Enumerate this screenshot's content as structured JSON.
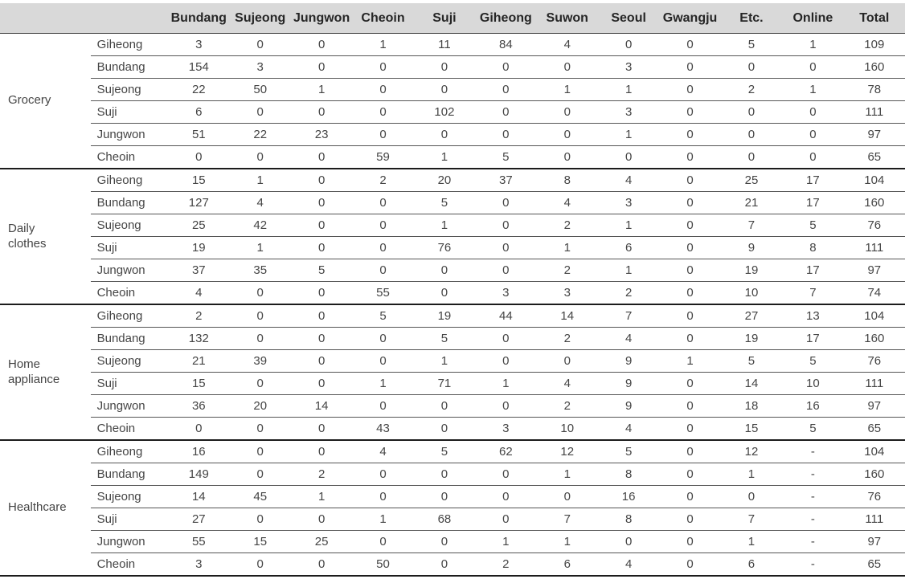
{
  "colors": {
    "header_background": "#d9d9d9",
    "header_text": "#262626",
    "body_text": "#454545",
    "row_rule": "#565656",
    "group_rule": "#1c1c1c"
  },
  "chart_data": {
    "type": "table",
    "title": "",
    "columns": [
      "Bundang",
      "Sujeong",
      "Jungwon",
      "Cheoin",
      "Suji",
      "Giheong",
      "Suwon",
      "Seoul",
      "Gwangju",
      "Etc.",
      "Online",
      "Total"
    ],
    "groups": [
      {
        "category": "Grocery",
        "rows": [
          {
            "label": "Giheong",
            "values": [
              3,
              0,
              0,
              1,
              11,
              84,
              4,
              0,
              0,
              5,
              1,
              109
            ]
          },
          {
            "label": "Bundang",
            "values": [
              154,
              3,
              0,
              0,
              0,
              0,
              0,
              3,
              0,
              0,
              0,
              160
            ]
          },
          {
            "label": "Sujeong",
            "values": [
              22,
              50,
              1,
              0,
              0,
              0,
              1,
              1,
              0,
              2,
              1,
              78
            ]
          },
          {
            "label": "Suji",
            "values": [
              6,
              0,
              0,
              0,
              102,
              0,
              0,
              3,
              0,
              0,
              0,
              111
            ]
          },
          {
            "label": "Jungwon",
            "values": [
              51,
              22,
              23,
              0,
              0,
              0,
              0,
              1,
              0,
              0,
              0,
              97
            ]
          },
          {
            "label": "Cheoin",
            "values": [
              0,
              0,
              0,
              59,
              1,
              5,
              0,
              0,
              0,
              0,
              0,
              65
            ]
          }
        ]
      },
      {
        "category": "Daily clothes",
        "rows": [
          {
            "label": "Giheong",
            "values": [
              15,
              1,
              0,
              2,
              20,
              37,
              8,
              4,
              0,
              25,
              17,
              104
            ]
          },
          {
            "label": "Bundang",
            "values": [
              127,
              4,
              0,
              0,
              5,
              0,
              4,
              3,
              0,
              21,
              17,
              160
            ]
          },
          {
            "label": "Sujeong",
            "values": [
              25,
              42,
              0,
              0,
              1,
              0,
              2,
              1,
              0,
              7,
              5,
              76
            ]
          },
          {
            "label": "Suji",
            "values": [
              19,
              1,
              0,
              0,
              76,
              0,
              1,
              6,
              0,
              9,
              8,
              111
            ]
          },
          {
            "label": "Jungwon",
            "values": [
              37,
              35,
              5,
              0,
              0,
              0,
              2,
              1,
              0,
              19,
              17,
              97
            ]
          },
          {
            "label": "Cheoin",
            "values": [
              4,
              0,
              0,
              55,
              0,
              3,
              3,
              2,
              0,
              10,
              7,
              74
            ]
          }
        ]
      },
      {
        "category": "Home appliance",
        "rows": [
          {
            "label": "Giheong",
            "values": [
              2,
              0,
              0,
              5,
              19,
              44,
              14,
              7,
              0,
              27,
              13,
              104
            ]
          },
          {
            "label": "Bundang",
            "values": [
              132,
              0,
              0,
              0,
              5,
              0,
              2,
              4,
              0,
              19,
              17,
              160
            ]
          },
          {
            "label": "Sujeong",
            "values": [
              21,
              39,
              0,
              0,
              1,
              0,
              0,
              9,
              1,
              5,
              5,
              76
            ]
          },
          {
            "label": "Suji",
            "values": [
              15,
              0,
              0,
              1,
              71,
              1,
              4,
              9,
              0,
              14,
              10,
              111
            ]
          },
          {
            "label": "Jungwon",
            "values": [
              36,
              20,
              14,
              0,
              0,
              0,
              2,
              9,
              0,
              18,
              16,
              97
            ]
          },
          {
            "label": "Cheoin",
            "values": [
              0,
              0,
              0,
              43,
              0,
              3,
              10,
              4,
              0,
              15,
              5,
              65
            ]
          }
        ]
      },
      {
        "category": "Healthcare",
        "rows": [
          {
            "label": "Giheong",
            "values": [
              16,
              0,
              0,
              4,
              5,
              62,
              12,
              5,
              0,
              12,
              "-",
              104
            ]
          },
          {
            "label": "Bundang",
            "values": [
              149,
              0,
              2,
              0,
              0,
              0,
              1,
              8,
              0,
              1,
              "-",
              160
            ]
          },
          {
            "label": "Sujeong",
            "values": [
              14,
              45,
              1,
              0,
              0,
              0,
              0,
              16,
              0,
              0,
              "-",
              76
            ]
          },
          {
            "label": "Suji",
            "values": [
              27,
              0,
              0,
              1,
              68,
              0,
              7,
              8,
              0,
              7,
              "-",
              111
            ]
          },
          {
            "label": "Jungwon",
            "values": [
              55,
              15,
              25,
              0,
              0,
              1,
              1,
              0,
              0,
              1,
              "-",
              97
            ]
          },
          {
            "label": "Cheoin",
            "values": [
              3,
              0,
              0,
              50,
              0,
              2,
              6,
              4,
              0,
              6,
              "-",
              65
            ]
          }
        ]
      }
    ]
  }
}
